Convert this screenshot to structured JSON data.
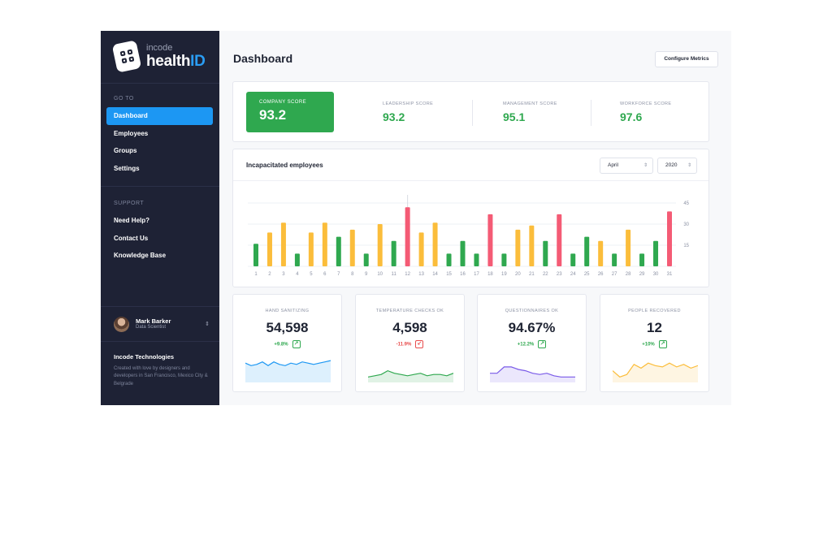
{
  "brand": {
    "small": "incode",
    "big_plain": "health",
    "big_accent": "ID"
  },
  "sidebar": {
    "goto_label": "GO TO",
    "items": [
      {
        "label": "Dashboard",
        "active": true
      },
      {
        "label": "Employees"
      },
      {
        "label": "Groups"
      },
      {
        "label": "Settings"
      }
    ],
    "support_label": "SUPPORT",
    "support_items": [
      {
        "label": "Need Help?"
      },
      {
        "label": "Contact Us"
      },
      {
        "label": "Knowledge Base"
      }
    ],
    "user": {
      "name": "Mark Barker",
      "role": "Data Scientist",
      "toggle": "⇕"
    },
    "company": {
      "name": "Incode Technologies",
      "desc": "Created with love by designers and developers in San Francisco, Mexico City & Belgrade"
    }
  },
  "header": {
    "title": "Dashboard",
    "configure_label": "Configure Metrics"
  },
  "scores": {
    "company": {
      "label": "COMPANY SCORE",
      "value": "93.2"
    },
    "leadership": {
      "label": "LEADERSHIP SCORE",
      "value": "93.2"
    },
    "management": {
      "label": "MANAGEMENT SCORE",
      "value": "95.1"
    },
    "workforce": {
      "label": "WORKFORCE SCORE",
      "value": "97.6"
    }
  },
  "incapacitated": {
    "title": "Incapacitated employees",
    "month": "April",
    "year": "2020",
    "select_arrow": "⇕"
  },
  "colors": {
    "green": "#2fa84f",
    "yellow": "#fbbd3b",
    "red": "#f45b75",
    "blue": "#1c97f3"
  },
  "chart_data": {
    "type": "bar",
    "categories": [
      "1",
      "2",
      "3",
      "4",
      "5",
      "6",
      "7",
      "8",
      "9",
      "10",
      "11",
      "12",
      "13",
      "14",
      "15",
      "16",
      "17",
      "18",
      "19",
      "20",
      "21",
      "22",
      "23",
      "24",
      "25",
      "26",
      "27",
      "28",
      "29",
      "30",
      "31"
    ],
    "values": [
      16,
      24,
      31,
      9,
      24,
      31,
      21,
      26,
      9,
      30,
      18,
      42,
      24,
      31,
      9,
      18,
      9,
      37,
      9,
      26,
      29,
      18,
      37,
      9,
      21,
      18,
      9,
      26,
      9,
      18,
      39
    ],
    "bar_colors": [
      "green",
      "yellow",
      "yellow",
      "green",
      "yellow",
      "yellow",
      "green",
      "yellow",
      "green",
      "yellow",
      "green",
      "red",
      "yellow",
      "yellow",
      "green",
      "green",
      "green",
      "red",
      "green",
      "yellow",
      "yellow",
      "green",
      "red",
      "green",
      "green",
      "yellow",
      "green",
      "yellow",
      "green",
      "green",
      "red"
    ],
    "y_ticks": [
      15,
      30,
      45
    ],
    "ylim": [
      0,
      45
    ],
    "grid": true,
    "axis_side": "right"
  },
  "stats": [
    {
      "label": "HAND SANITIZING",
      "value": "54,598",
      "change": "+9.8%",
      "trend": "up",
      "color": "#1c97f3",
      "spark": [
        14,
        12,
        13,
        15,
        12,
        15,
        13,
        12,
        14,
        13,
        15,
        14,
        13,
        14,
        15,
        16
      ]
    },
    {
      "label": "TEMPERATURE CHECKS OK",
      "value": "4,598",
      "change": "-11.9%",
      "trend": "down",
      "color": "#2fa84f",
      "spark": [
        3,
        4,
        5,
        8,
        6,
        5,
        4,
        5,
        6,
        4,
        5,
        5,
        4,
        6
      ]
    },
    {
      "label": "QUESTIONNAIRES OK",
      "value": "94.67%",
      "change": "+12.2%",
      "trend": "up",
      "color": "#7a5be8",
      "spark": [
        6,
        6,
        11,
        11,
        9,
        8,
        6,
        5,
        6,
        4,
        3,
        3,
        3
      ]
    },
    {
      "label": "PEOPLE RECOVERED",
      "value": "12",
      "change": "+10%",
      "trend": "up",
      "color": "#fbbd3b",
      "spark": [
        8,
        3,
        5,
        13,
        10,
        14,
        12,
        11,
        14,
        11,
        13,
        10,
        12
      ]
    }
  ]
}
